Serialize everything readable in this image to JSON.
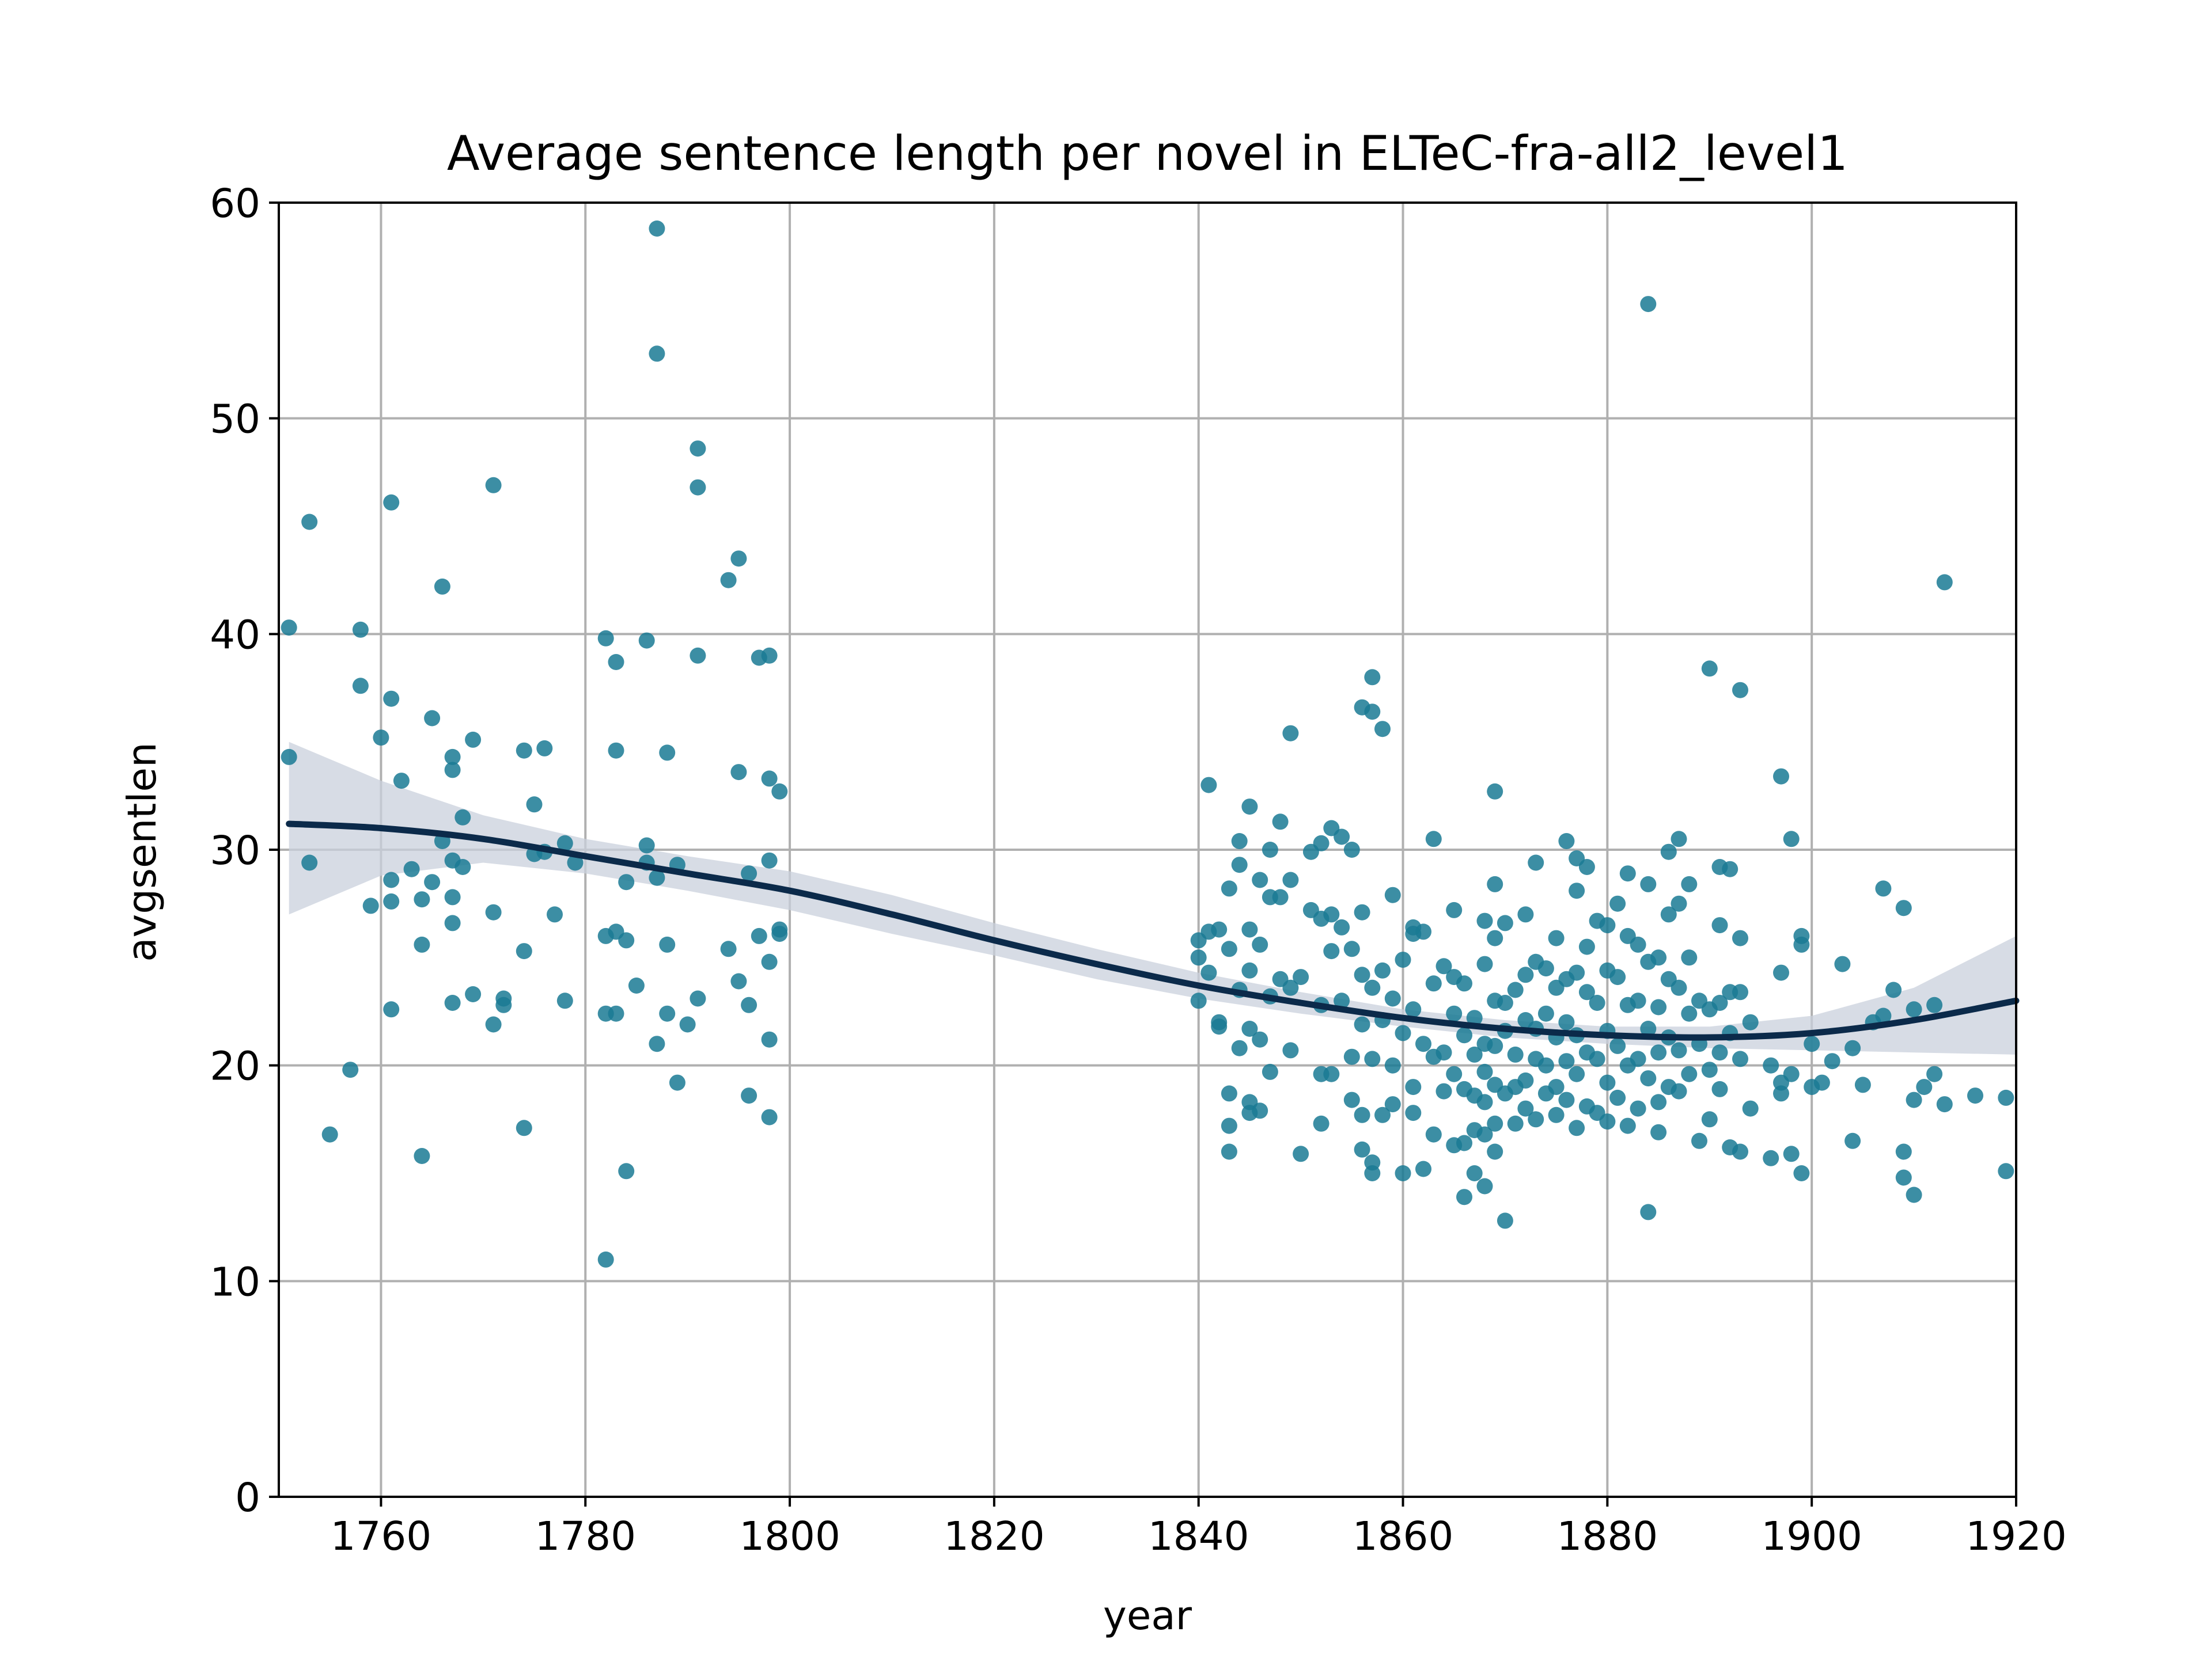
{
  "chart_data": {
    "type": "scatter",
    "title": "Average sentence length per novel in ELTeC-fra-all2_level1",
    "xlabel": "year",
    "ylabel": "avgsentlen",
    "xlim": [
      1750,
      1920
    ],
    "ylim": [
      0,
      60
    ],
    "xticks": [
      1760,
      1780,
      1800,
      1820,
      1840,
      1860,
      1880,
      1900,
      1920
    ],
    "yticks": [
      0,
      10,
      20,
      30,
      40,
      50,
      60
    ],
    "grid": true,
    "legend": "none",
    "colors": {
      "points": "#1a7a94",
      "trend": "#0b2a4a",
      "band": "#c9d0dc",
      "grid": "#b0b0b0"
    },
    "points": [
      [
        1751,
        40.3
      ],
      [
        1751,
        34.3
      ],
      [
        1753,
        45.2
      ],
      [
        1753,
        29.4
      ],
      [
        1755,
        16.8
      ],
      [
        1757,
        19.8
      ],
      [
        1758,
        40.2
      ],
      [
        1758,
        37.6
      ],
      [
        1759,
        27.4
      ],
      [
        1760,
        35.2
      ],
      [
        1761,
        46.1
      ],
      [
        1761,
        37.0
      ],
      [
        1761,
        28.6
      ],
      [
        1761,
        27.6
      ],
      [
        1761,
        22.6
      ],
      [
        1762,
        33.2
      ],
      [
        1763,
        29.1
      ],
      [
        1764,
        27.7
      ],
      [
        1764,
        25.6
      ],
      [
        1764,
        15.8
      ],
      [
        1765,
        36.1
      ],
      [
        1765,
        28.5
      ],
      [
        1766,
        42.2
      ],
      [
        1766,
        30.4
      ],
      [
        1767,
        34.3
      ],
      [
        1767,
        33.7
      ],
      [
        1767,
        29.5
      ],
      [
        1767,
        27.8
      ],
      [
        1767,
        26.6
      ],
      [
        1767,
        22.9
      ],
      [
        1768,
        31.5
      ],
      [
        1768,
        29.2
      ],
      [
        1769,
        35.1
      ],
      [
        1769,
        23.3
      ],
      [
        1771,
        46.9
      ],
      [
        1771,
        27.1
      ],
      [
        1771,
        21.9
      ],
      [
        1772,
        23.1
      ],
      [
        1772,
        22.8
      ],
      [
        1774,
        34.6
      ],
      [
        1774,
        25.3
      ],
      [
        1774,
        17.1
      ],
      [
        1775,
        32.1
      ],
      [
        1775,
        29.8
      ],
      [
        1776,
        34.7
      ],
      [
        1776,
        29.9
      ],
      [
        1777,
        27.0
      ],
      [
        1778,
        30.3
      ],
      [
        1778,
        23.0
      ],
      [
        1779,
        29.4
      ],
      [
        1782,
        39.8
      ],
      [
        1782,
        26.0
      ],
      [
        1782,
        22.4
      ],
      [
        1782,
        11.0
      ],
      [
        1783,
        34.6
      ],
      [
        1783,
        38.7
      ],
      [
        1783,
        26.2
      ],
      [
        1783,
        22.4
      ],
      [
        1784,
        28.5
      ],
      [
        1784,
        25.8
      ],
      [
        1784,
        15.1
      ],
      [
        1785,
        23.7
      ],
      [
        1786,
        39.7
      ],
      [
        1786,
        30.2
      ],
      [
        1786,
        29.4
      ],
      [
        1787,
        58.8
      ],
      [
        1787,
        53.0
      ],
      [
        1787,
        28.7
      ],
      [
        1787,
        21.0
      ],
      [
        1788,
        34.5
      ],
      [
        1788,
        25.6
      ],
      [
        1788,
        22.4
      ],
      [
        1789,
        29.3
      ],
      [
        1789,
        19.2
      ],
      [
        1790,
        21.9
      ],
      [
        1791,
        48.6
      ],
      [
        1791,
        46.8
      ],
      [
        1791,
        39.0
      ],
      [
        1791,
        23.1
      ],
      [
        1794,
        42.5
      ],
      [
        1794,
        25.4
      ],
      [
        1795,
        43.5
      ],
      [
        1795,
        33.6
      ],
      [
        1795,
        23.9
      ],
      [
        1796,
        28.9
      ],
      [
        1796,
        22.8
      ],
      [
        1796,
        18.6
      ],
      [
        1797,
        38.9
      ],
      [
        1797,
        26.0
      ],
      [
        1798,
        39.0
      ],
      [
        1798,
        33.3
      ],
      [
        1798,
        29.5
      ],
      [
        1798,
        24.8
      ],
      [
        1798,
        21.2
      ],
      [
        1798,
        17.6
      ],
      [
        1799,
        32.7
      ],
      [
        1799,
        26.3
      ],
      [
        1799,
        26.1
      ],
      [
        1840,
        25.8
      ],
      [
        1840,
        25.0
      ],
      [
        1840,
        23.0
      ],
      [
        1841,
        33.0
      ],
      [
        1841,
        26.2
      ],
      [
        1841,
        24.3
      ],
      [
        1842,
        26.3
      ],
      [
        1842,
        22.0
      ],
      [
        1842,
        21.8
      ],
      [
        1843,
        28.2
      ],
      [
        1843,
        25.4
      ],
      [
        1843,
        18.7
      ],
      [
        1843,
        17.2
      ],
      [
        1843,
        16.0
      ],
      [
        1844,
        30.4
      ],
      [
        1844,
        29.3
      ],
      [
        1844,
        23.5
      ],
      [
        1844,
        20.8
      ],
      [
        1845,
        32.0
      ],
      [
        1845,
        26.3
      ],
      [
        1845,
        24.4
      ],
      [
        1845,
        21.7
      ],
      [
        1845,
        18.3
      ],
      [
        1845,
        17.8
      ],
      [
        1846,
        28.6
      ],
      [
        1846,
        25.6
      ],
      [
        1846,
        21.2
      ],
      [
        1846,
        17.9
      ],
      [
        1847,
        30.0
      ],
      [
        1847,
        27.8
      ],
      [
        1847,
        23.2
      ],
      [
        1847,
        19.7
      ],
      [
        1848,
        31.3
      ],
      [
        1848,
        27.8
      ],
      [
        1848,
        24.0
      ],
      [
        1849,
        35.4
      ],
      [
        1849,
        28.6
      ],
      [
        1849,
        23.6
      ],
      [
        1849,
        20.7
      ],
      [
        1850,
        15.9
      ],
      [
        1850,
        24.1
      ],
      [
        1851,
        29.9
      ],
      [
        1851,
        27.2
      ],
      [
        1852,
        30.3
      ],
      [
        1852,
        26.8
      ],
      [
        1852,
        22.8
      ],
      [
        1852,
        19.6
      ],
      [
        1852,
        17.3
      ],
      [
        1853,
        31.0
      ],
      [
        1853,
        27.0
      ],
      [
        1853,
        25.3
      ],
      [
        1853,
        19.6
      ],
      [
        1854,
        30.6
      ],
      [
        1854,
        26.4
      ],
      [
        1854,
        23.0
      ],
      [
        1855,
        30.0
      ],
      [
        1855,
        25.4
      ],
      [
        1855,
        20.4
      ],
      [
        1855,
        18.4
      ],
      [
        1856,
        36.6
      ],
      [
        1856,
        27.1
      ],
      [
        1856,
        24.2
      ],
      [
        1856,
        21.9
      ],
      [
        1856,
        17.7
      ],
      [
        1856,
        16.1
      ],
      [
        1857,
        38.0
      ],
      [
        1857,
        36.4
      ],
      [
        1857,
        23.6
      ],
      [
        1857,
        20.3
      ],
      [
        1857,
        15.5
      ],
      [
        1857,
        15.0
      ],
      [
        1858,
        35.6
      ],
      [
        1858,
        24.4
      ],
      [
        1858,
        22.1
      ],
      [
        1858,
        17.7
      ],
      [
        1859,
        27.9
      ],
      [
        1859,
        23.1
      ],
      [
        1859,
        20.0
      ],
      [
        1859,
        18.2
      ],
      [
        1860,
        24.9
      ],
      [
        1860,
        21.5
      ],
      [
        1860,
        15.0
      ],
      [
        1861,
        26.4
      ],
      [
        1861,
        26.1
      ],
      [
        1861,
        22.6
      ],
      [
        1861,
        19.0
      ],
      [
        1861,
        17.8
      ],
      [
        1862,
        26.2
      ],
      [
        1862,
        21.0
      ],
      [
        1862,
        15.2
      ],
      [
        1863,
        30.5
      ],
      [
        1863,
        23.8
      ],
      [
        1863,
        20.4
      ],
      [
        1863,
        16.8
      ],
      [
        1864,
        24.6
      ],
      [
        1864,
        20.6
      ],
      [
        1864,
        18.8
      ],
      [
        1865,
        27.2
      ],
      [
        1865,
        24.1
      ],
      [
        1865,
        22.4
      ],
      [
        1865,
        19.6
      ],
      [
        1865,
        16.3
      ],
      [
        1866,
        23.8
      ],
      [
        1866,
        21.4
      ],
      [
        1866,
        18.9
      ],
      [
        1866,
        16.4
      ],
      [
        1866,
        13.9
      ],
      [
        1867,
        22.2
      ],
      [
        1867,
        20.5
      ],
      [
        1867,
        18.6
      ],
      [
        1867,
        17.0
      ],
      [
        1867,
        15.0
      ],
      [
        1868,
        26.7
      ],
      [
        1868,
        24.7
      ],
      [
        1868,
        21.0
      ],
      [
        1868,
        19.7
      ],
      [
        1868,
        18.3
      ],
      [
        1868,
        16.8
      ],
      [
        1868,
        14.4
      ],
      [
        1869,
        32.7
      ],
      [
        1869,
        28.4
      ],
      [
        1869,
        25.9
      ],
      [
        1869,
        23.0
      ],
      [
        1869,
        20.9
      ],
      [
        1869,
        19.1
      ],
      [
        1869,
        17.3
      ],
      [
        1869,
        16.0
      ],
      [
        1870,
        26.6
      ],
      [
        1870,
        22.9
      ],
      [
        1870,
        21.6
      ],
      [
        1870,
        18.7
      ],
      [
        1870,
        12.8
      ],
      [
        1871,
        23.5
      ],
      [
        1871,
        20.5
      ],
      [
        1871,
        19.0
      ],
      [
        1871,
        17.3
      ],
      [
        1872,
        27.0
      ],
      [
        1872,
        24.2
      ],
      [
        1872,
        22.1
      ],
      [
        1872,
        19.3
      ],
      [
        1872,
        18.0
      ],
      [
        1873,
        29.4
      ],
      [
        1873,
        24.8
      ],
      [
        1873,
        21.7
      ],
      [
        1873,
        20.3
      ],
      [
        1873,
        17.5
      ],
      [
        1874,
        24.5
      ],
      [
        1874,
        22.4
      ],
      [
        1874,
        20.0
      ],
      [
        1874,
        18.7
      ],
      [
        1875,
        25.9
      ],
      [
        1875,
        23.6
      ],
      [
        1875,
        21.3
      ],
      [
        1875,
        19.0
      ],
      [
        1875,
        17.7
      ],
      [
        1876,
        30.4
      ],
      [
        1876,
        24.0
      ],
      [
        1876,
        22.0
      ],
      [
        1876,
        20.2
      ],
      [
        1876,
        18.4
      ],
      [
        1877,
        29.6
      ],
      [
        1877,
        28.1
      ],
      [
        1877,
        24.3
      ],
      [
        1877,
        21.4
      ],
      [
        1877,
        19.6
      ],
      [
        1877,
        17.1
      ],
      [
        1878,
        29.2
      ],
      [
        1878,
        25.5
      ],
      [
        1878,
        23.4
      ],
      [
        1878,
        20.6
      ],
      [
        1878,
        18.1
      ],
      [
        1879,
        26.7
      ],
      [
        1879,
        22.9
      ],
      [
        1879,
        20.3
      ],
      [
        1879,
        17.8
      ],
      [
        1880,
        26.5
      ],
      [
        1880,
        24.4
      ],
      [
        1880,
        21.6
      ],
      [
        1880,
        19.2
      ],
      [
        1880,
        17.4
      ],
      [
        1881,
        27.5
      ],
      [
        1881,
        24.1
      ],
      [
        1881,
        20.9
      ],
      [
        1881,
        18.5
      ],
      [
        1882,
        28.9
      ],
      [
        1882,
        26.0
      ],
      [
        1882,
        22.8
      ],
      [
        1882,
        20.0
      ],
      [
        1882,
        17.2
      ],
      [
        1883,
        25.6
      ],
      [
        1883,
        23.0
      ],
      [
        1883,
        20.3
      ],
      [
        1883,
        18.0
      ],
      [
        1884,
        55.3
      ],
      [
        1884,
        28.4
      ],
      [
        1884,
        24.8
      ],
      [
        1884,
        21.7
      ],
      [
        1884,
        19.4
      ],
      [
        1884,
        13.2
      ],
      [
        1885,
        25.0
      ],
      [
        1885,
        22.7
      ],
      [
        1885,
        20.6
      ],
      [
        1885,
        18.3
      ],
      [
        1885,
        16.9
      ],
      [
        1886,
        29.9
      ],
      [
        1886,
        27.0
      ],
      [
        1886,
        24.0
      ],
      [
        1886,
        21.3
      ],
      [
        1886,
        19.0
      ],
      [
        1887,
        30.5
      ],
      [
        1887,
        27.5
      ],
      [
        1887,
        23.6
      ],
      [
        1887,
        20.7
      ],
      [
        1887,
        18.8
      ],
      [
        1888,
        28.4
      ],
      [
        1888,
        25.0
      ],
      [
        1888,
        22.4
      ],
      [
        1888,
        19.6
      ],
      [
        1889,
        23.0
      ],
      [
        1889,
        21.0
      ],
      [
        1889,
        16.5
      ],
      [
        1890,
        38.4
      ],
      [
        1890,
        22.6
      ],
      [
        1890,
        19.8
      ],
      [
        1890,
        17.5
      ],
      [
        1891,
        29.2
      ],
      [
        1891,
        26.5
      ],
      [
        1891,
        22.9
      ],
      [
        1891,
        20.6
      ],
      [
        1891,
        18.9
      ],
      [
        1892,
        29.1
      ],
      [
        1892,
        23.4
      ],
      [
        1892,
        21.5
      ],
      [
        1892,
        16.2
      ],
      [
        1893,
        37.4
      ],
      [
        1893,
        25.9
      ],
      [
        1893,
        23.4
      ],
      [
        1893,
        20.3
      ],
      [
        1893,
        16.0
      ],
      [
        1894,
        22.0
      ],
      [
        1894,
        18.0
      ],
      [
        1896,
        20.0
      ],
      [
        1896,
        15.7
      ],
      [
        1897,
        33.4
      ],
      [
        1897,
        24.3
      ],
      [
        1897,
        19.2
      ],
      [
        1897,
        18.7
      ],
      [
        1898,
        30.5
      ],
      [
        1898,
        19.6
      ],
      [
        1898,
        15.9
      ],
      [
        1899,
        26.0
      ],
      [
        1899,
        25.6
      ],
      [
        1899,
        15.0
      ],
      [
        1900,
        21.0
      ],
      [
        1900,
        19.0
      ],
      [
        1901,
        19.2
      ],
      [
        1902,
        20.2
      ],
      [
        1903,
        24.7
      ],
      [
        1904,
        20.8
      ],
      [
        1904,
        16.5
      ],
      [
        1905,
        19.1
      ],
      [
        1906,
        22.0
      ],
      [
        1907,
        28.2
      ],
      [
        1907,
        22.3
      ],
      [
        1908,
        23.5
      ],
      [
        1909,
        27.3
      ],
      [
        1909,
        16.0
      ],
      [
        1909,
        14.8
      ],
      [
        1910,
        22.6
      ],
      [
        1910,
        18.4
      ],
      [
        1910,
        14.0
      ],
      [
        1911,
        19.0
      ],
      [
        1912,
        22.8
      ],
      [
        1912,
        19.6
      ],
      [
        1913,
        42.4
      ],
      [
        1913,
        18.2
      ],
      [
        1916,
        18.6
      ],
      [
        1919,
        18.5
      ],
      [
        1919,
        15.1
      ]
    ],
    "trend": {
      "x": [
        1751,
        1760,
        1770,
        1780,
        1790,
        1800,
        1810,
        1820,
        1830,
        1840,
        1850,
        1860,
        1870,
        1880,
        1890,
        1900,
        1910,
        1920
      ],
      "y": [
        31.2,
        31.0,
        30.5,
        29.7,
        28.9,
        28.1,
        27.0,
        25.8,
        24.7,
        23.7,
        22.9,
        22.2,
        21.7,
        21.4,
        21.3,
        21.5,
        22.1,
        23.0
      ],
      "ci_low": [
        27.0,
        28.8,
        29.4,
        28.9,
        28.1,
        27.2,
        26.1,
        25.1,
        24.0,
        23.1,
        22.4,
        21.8,
        21.3,
        21.0,
        20.8,
        20.7,
        20.6,
        20.5
      ],
      "ci_high": [
        35.0,
        33.2,
        31.6,
        30.5,
        29.7,
        29.0,
        27.9,
        26.6,
        25.4,
        24.3,
        23.4,
        22.6,
        22.1,
        21.8,
        21.8,
        22.3,
        23.6,
        26.0
      ]
    }
  }
}
